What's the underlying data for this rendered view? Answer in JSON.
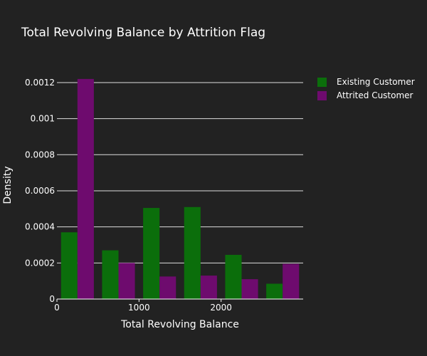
{
  "chart_data": {
    "type": "bar",
    "title": "Total Revolving Balance by Attrition Flag",
    "xlabel": "Total Revolving Balance",
    "ylabel": "Density",
    "bin_edges": [
      0,
      500,
      1000,
      1500,
      2000,
      2500,
      3000
    ],
    "series": [
      {
        "name": "Existing Customer",
        "color": "#0b6e0b",
        "values": [
          0.00037,
          0.00027,
          0.000505,
          0.00051,
          0.000245,
          8.5e-05
        ]
      },
      {
        "name": "Attrited Customer",
        "color": "#6e0b6e",
        "values": [
          0.00122,
          0.0002,
          0.000125,
          0.00013,
          0.00011,
          0.000195
        ]
      }
    ],
    "xticks": [
      {
        "value": 0,
        "label": "0"
      },
      {
        "value": 1000,
        "label": "1000"
      },
      {
        "value": 2000,
        "label": "2000"
      }
    ],
    "yticks": [
      {
        "value": 0,
        "label": "0"
      },
      {
        "value": 0.0002,
        "label": "0.0002"
      },
      {
        "value": 0.0004,
        "label": "0.0004"
      },
      {
        "value": 0.0006,
        "label": "0.0006"
      },
      {
        "value": 0.0008,
        "label": "0.0008"
      },
      {
        "value": 0.001,
        "label": "0.001"
      },
      {
        "value": 0.0012,
        "label": "0.0012"
      }
    ],
    "xlim": [
      0,
      3000
    ],
    "ylim": [
      0,
      0.001263
    ],
    "grid": true,
    "legend_position": "top-right",
    "colors": {
      "background": "#222222",
      "grid": "#dddddd",
      "text": "#ffffff"
    }
  }
}
